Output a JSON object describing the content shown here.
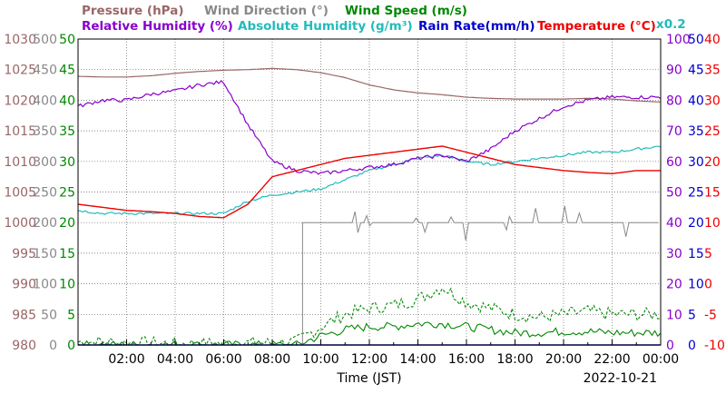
{
  "chart_data": {
    "type": "line",
    "xlabel": "Time (JST)",
    "date": "2022-10-21",
    "x_hours": [
      0,
      1,
      2,
      3,
      4,
      5,
      6,
      7,
      8,
      9,
      10,
      11,
      12,
      13,
      14,
      15,
      16,
      17,
      18,
      19,
      20,
      21,
      22,
      23,
      24
    ],
    "x_tick_labels": [
      "02:00",
      "04:00",
      "06:00",
      "08:00",
      "10:00",
      "12:00",
      "14:00",
      "16:00",
      "18:00",
      "20:00",
      "22:00",
      "00:00"
    ],
    "xlim": [
      0,
      24
    ],
    "grid": true,
    "legend_position": "top",
    "axis_colors": {
      "pressure": "#996666",
      "wind_direction": "#888888",
      "wind_speed": "#008800",
      "relative_humidity": "#8800cc",
      "rain_rate": "#0000cc",
      "temperature": "#ee0000",
      "absolute_humidity": "#22bbbb"
    },
    "axes": [
      {
        "key": "pressure",
        "side": "left",
        "ticks": [
          "1030",
          "1025",
          "1020",
          "1015",
          "1010",
          "1005",
          "1000",
          "995",
          "990",
          "985",
          "980"
        ],
        "ylim": [
          980,
          1030
        ]
      },
      {
        "key": "wind_direction",
        "side": "left",
        "ticks": [
          "500",
          "450",
          "400",
          "350",
          "300",
          "250",
          "200",
          "150",
          "100",
          "50",
          "0"
        ],
        "ylim": [
          0,
          500
        ]
      },
      {
        "key": "wind_speed",
        "side": "left",
        "ticks": [
          "50",
          "45",
          "40",
          "35",
          "30",
          "25",
          "20",
          "15",
          "10",
          "5",
          "0"
        ],
        "ylim": [
          0,
          50
        ]
      },
      {
        "key": "relative_humidity",
        "side": "right",
        "ticks": [
          "100",
          "90",
          "80",
          "70",
          "60",
          "50",
          "40",
          "30",
          "20",
          "10",
          "0"
        ],
        "ylim": [
          0,
          100
        ]
      },
      {
        "key": "rain_rate",
        "side": "right",
        "ticks": [
          "50",
          "45",
          "40",
          "35",
          "30",
          "25",
          "20",
          "15",
          "10",
          "5",
          "0"
        ],
        "ylim": [
          0,
          50
        ]
      },
      {
        "key": "temperature",
        "side": "right",
        "ticks": [
          "40",
          "35",
          "30",
          "25",
          "20",
          "15",
          "10",
          "5",
          "0",
          "-5",
          "-10"
        ],
        "ylim": [
          -10,
          40
        ]
      }
    ],
    "legend": [
      {
        "key": "pressure",
        "text": "Pressure (hPa)"
      },
      {
        "key": "wind_direction",
        "text": "Wind Direction (°)"
      },
      {
        "key": "wind_speed",
        "text": "Wind Speed (m/s)"
      },
      {
        "key": "relative_humidity",
        "text": "Relative Humidity (%)"
      },
      {
        "key": "absolute_humidity",
        "text": "Absolute Humidity (g/m³)"
      },
      {
        "key": "rain_rate",
        "text": "Rain Rate(mm/h)"
      },
      {
        "key": "temperature",
        "text": "Temperature (°C)"
      }
    ],
    "abs_humidity_scale": "x0.2",
    "series": [
      {
        "name": "Pressure (hPa)",
        "key": "pressure",
        "axis": "pressure",
        "color": "#996666",
        "y": [
          1023.9,
          1023.8,
          1023.8,
          1024.0,
          1024.4,
          1024.7,
          1024.9,
          1025.0,
          1025.2,
          1025.0,
          1024.5,
          1023.7,
          1022.5,
          1021.7,
          1021.2,
          1020.9,
          1020.5,
          1020.3,
          1020.2,
          1020.2,
          1020.2,
          1020.3,
          1020.2,
          1019.9,
          1019.7
        ]
      },
      {
        "name": "Relative Humidity (%)",
        "key": "relative_humidity",
        "axis": "relative_humidity",
        "color": "#8800cc",
        "y": [
          78,
          80,
          80,
          82,
          83,
          85,
          86,
          72,
          60,
          57,
          56,
          57,
          58,
          59,
          61,
          62,
          60,
          64,
          70,
          74,
          78,
          80,
          81,
          81,
          81
        ]
      },
      {
        "name": "Absolute Humidity (g/m³)",
        "key": "absolute_humidity",
        "axis": "relative_humidity",
        "color": "#22bbbb",
        "y": [
          44,
          43,
          43,
          43,
          43,
          43,
          43,
          47,
          49,
          50,
          51,
          54,
          57,
          59,
          61,
          62,
          60,
          59,
          60,
          61,
          62,
          63,
          63,
          64,
          65
        ]
      },
      {
        "name": "Rain Rate(mm/h)",
        "key": "rain_rate",
        "axis": "rain_rate",
        "color": "#0000cc",
        "y": [
          0,
          0,
          0,
          0,
          0,
          0,
          0,
          0,
          0,
          0,
          0,
          0,
          0,
          0,
          0,
          0,
          0,
          0,
          0,
          0,
          0,
          0,
          0,
          0,
          0
        ]
      },
      {
        "name": "Temperature (°C)",
        "key": "temperature",
        "axis": "temperature",
        "color": "#ee0000",
        "y": [
          13.0,
          12.5,
          12.0,
          11.8,
          11.5,
          11.0,
          10.8,
          13.0,
          17.5,
          18.5,
          19.5,
          20.5,
          21.0,
          21.5,
          22.0,
          22.5,
          21.5,
          20.5,
          19.5,
          19.0,
          18.5,
          18.2,
          18.0,
          18.5,
          18.5
        ]
      },
      {
        "name": "Wind Direction (°)",
        "key": "wind_direction",
        "axis": "wind_direction",
        "color": "#888888",
        "y": [
          null,
          null,
          null,
          null,
          null,
          null,
          null,
          null,
          null,
          null,
          200,
          200,
          200,
          200,
          200,
          200,
          200,
          200,
          200,
          200,
          200,
          200,
          200,
          200,
          200
        ]
      },
      {
        "name": "Wind Speed (m/s) avg",
        "key": "wind_speed_avg",
        "axis": "wind_speed",
        "color": "#008800",
        "y": [
          0,
          0,
          0,
          0,
          0,
          0,
          0,
          0,
          0,
          0,
          1.5,
          2.5,
          3,
          3,
          3.5,
          3.5,
          3,
          2.5,
          2,
          2,
          2.2,
          2.2,
          2.0,
          2.0,
          2.0
        ]
      },
      {
        "name": "Wind Speed (m/s) gust",
        "key": "wind_speed_gust",
        "axis": "wind_speed",
        "color": "#008800",
        "y": [
          0.5,
          0.5,
          0.3,
          0.3,
          0.2,
          0.2,
          0.2,
          0.3,
          0.3,
          0.5,
          3,
          5,
          6,
          6.5,
          7.5,
          9.5,
          7,
          6,
          5,
          4.5,
          5,
          5.5,
          5,
          5,
          5
        ]
      }
    ],
    "wind_direction_start_hour": 9.25
  }
}
